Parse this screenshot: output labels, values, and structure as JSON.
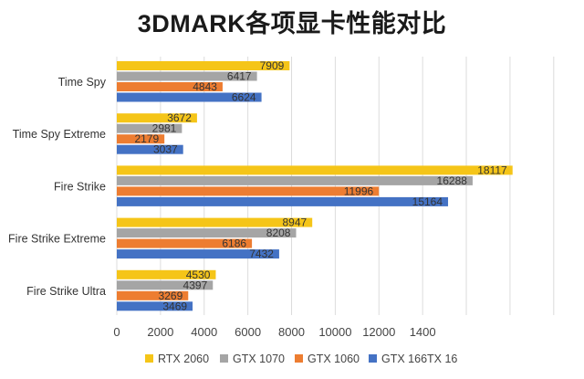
{
  "chart_data": {
    "type": "bar",
    "orientation": "horizontal",
    "title": "3DMARK各项显卡性能对比",
    "categories": [
      "Time Spy",
      "Time Spy Extreme",
      "Fire Strike",
      "Fire Strike Extreme",
      "Fire Strike Ultra"
    ],
    "series": [
      {
        "name": "RTX 2060",
        "color": "#f5c518",
        "values": [
          7909,
          3672,
          18117,
          8947,
          4530
        ]
      },
      {
        "name": "GTX 1070",
        "color": "#a5a5a5",
        "values": [
          6417,
          2981,
          16288,
          8208,
          4397
        ]
      },
      {
        "name": "GTX 1060",
        "color": "#ed7d31",
        "values": [
          4843,
          2179,
          11996,
          6186,
          3269
        ]
      },
      {
        "name": "GTX 166ΤΧ 16",
        "color": "#4472c4",
        "values": [
          6624,
          3037,
          15164,
          7432,
          3469
        ]
      }
    ],
    "xticks": [
      "0",
      "2000",
      "4000",
      "6000",
      "8000",
      "10000",
      "12000",
      "1400"
    ],
    "xlim": [
      0,
      20000
    ],
    "grid": true,
    "legend_position": "bottom"
  }
}
